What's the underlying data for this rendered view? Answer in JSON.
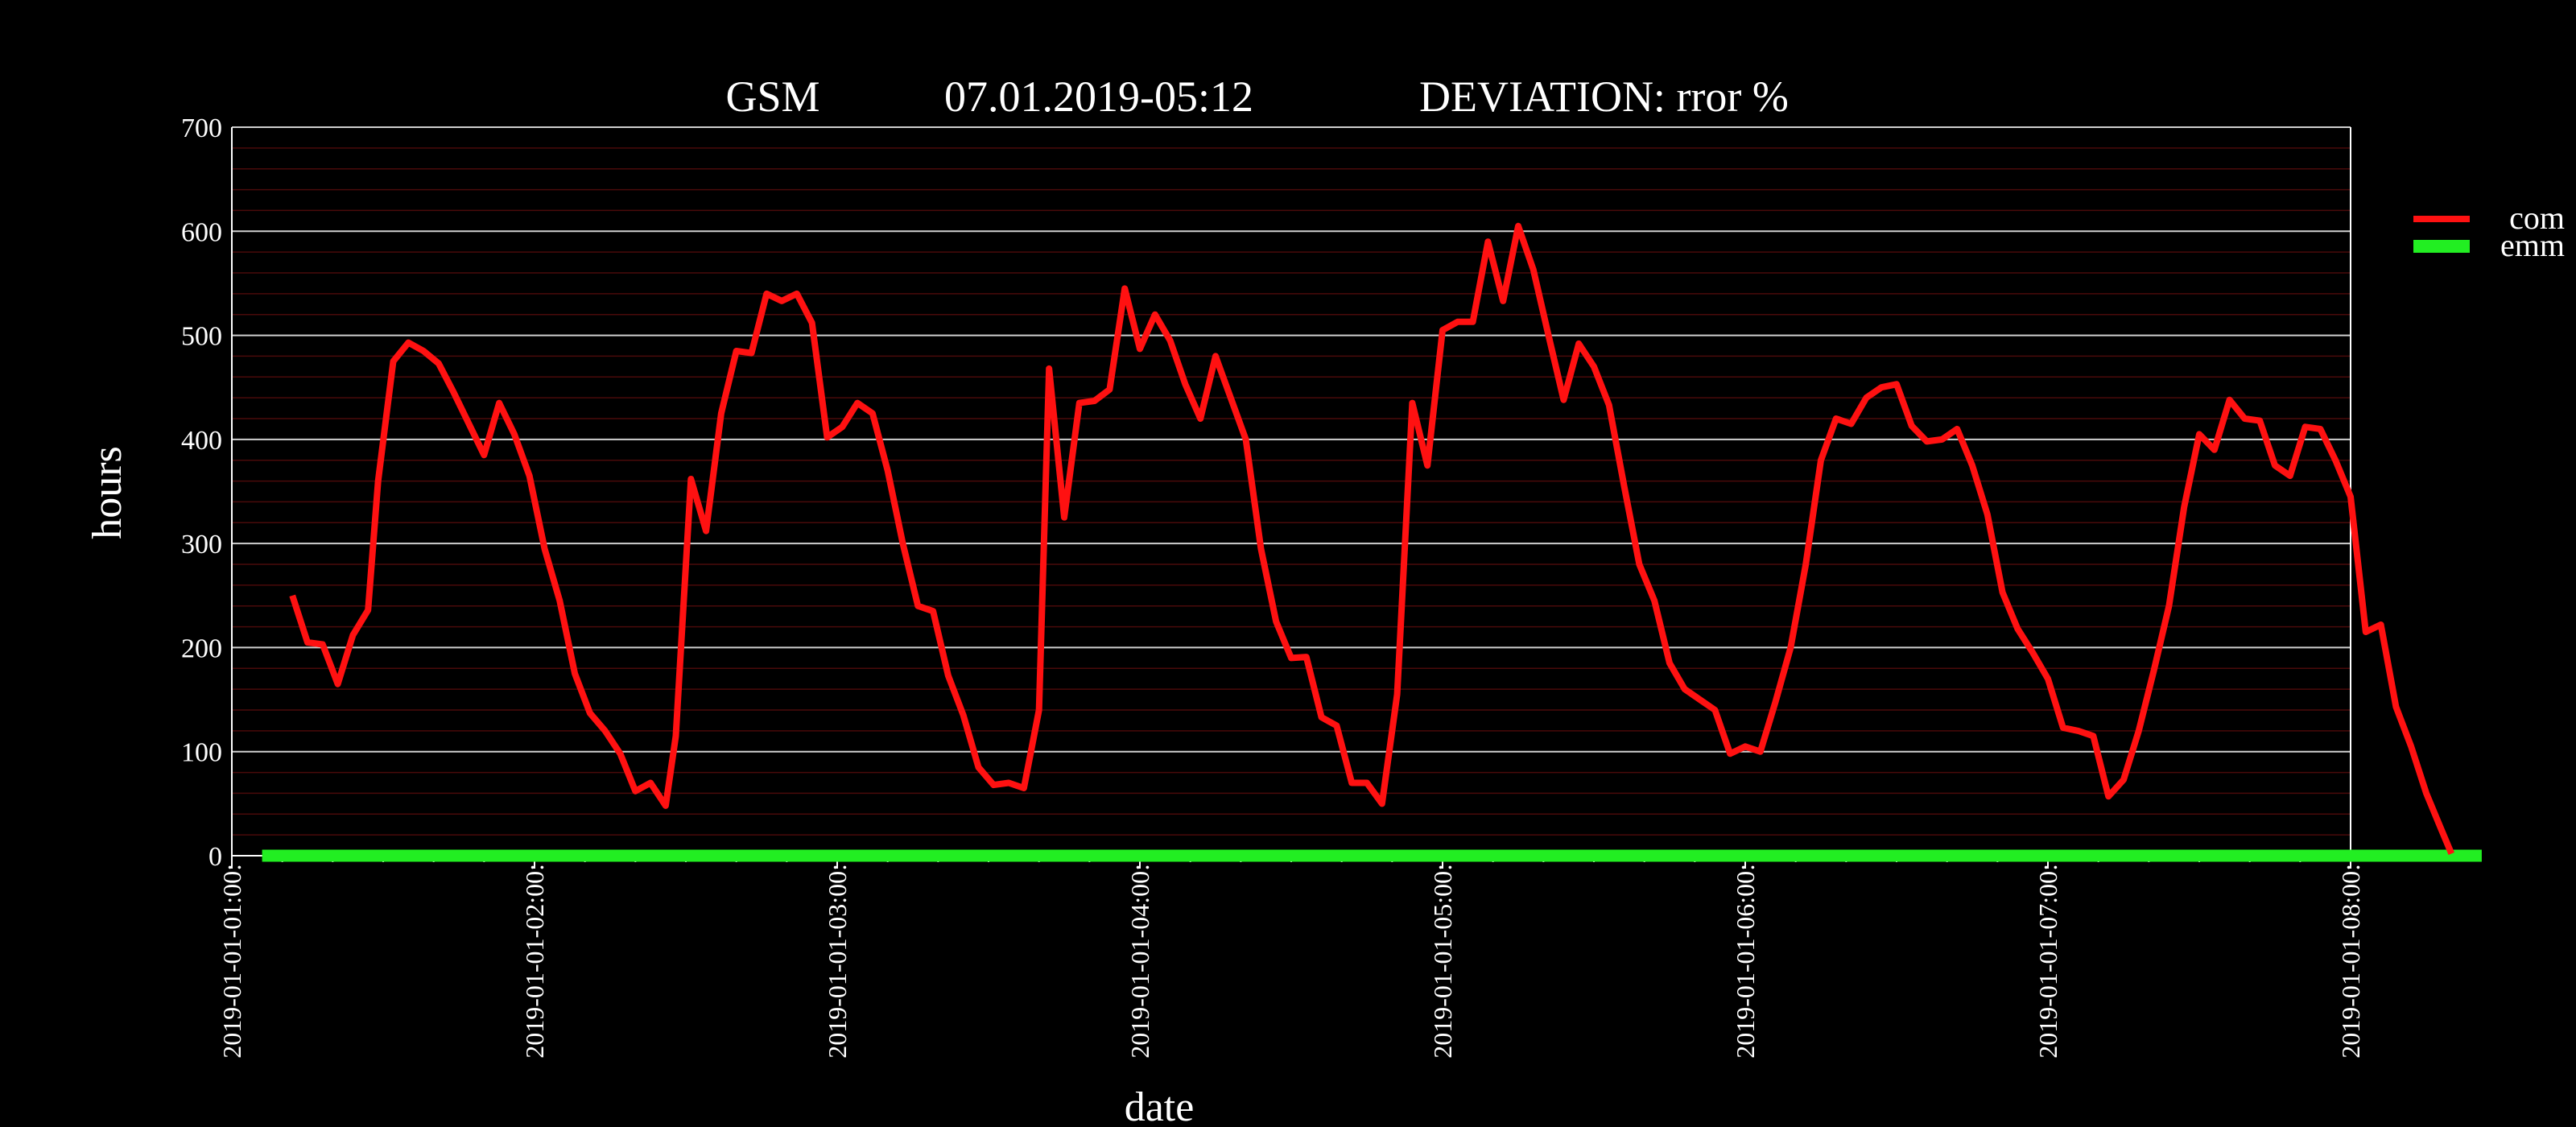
{
  "chart_data": {
    "type": "line",
    "title_parts": [
      "GSM",
      "07.01.2019-05:12",
      "DEVIATION: rror  %"
    ],
    "xlabel": "date",
    "ylabel": "hours",
    "xlim": [
      "2019-01-01 01:00",
      "2019-01-01 08:00"
    ],
    "ylim": [
      0,
      700
    ],
    "x_ticks": [
      "2019-01-01-01:00:",
      "2019-01-01-02:00:",
      "2019-01-01-03:00:",
      "2019-01-01-04:00:",
      "2019-01-01-05:00:",
      "2019-01-01-06:00:",
      "2019-01-01-07:00:",
      "2019-01-01-08:00:"
    ],
    "y_ticks": [
      0,
      100,
      200,
      300,
      400,
      500,
      600,
      700
    ],
    "grid": true,
    "legend_position": "right",
    "series": [
      {
        "name": "com",
        "color": "#ff1111",
        "points": [
          [
            "01:12",
            250
          ],
          [
            "01:15",
            205
          ],
          [
            "01:18",
            203
          ],
          [
            "01:21",
            165
          ],
          [
            "01:24",
            212
          ],
          [
            "01:27",
            236
          ],
          [
            "01:29",
            360
          ],
          [
            "01:32",
            475
          ],
          [
            "01:35",
            493
          ],
          [
            "01:38",
            485
          ],
          [
            "01:41",
            473
          ],
          [
            "01:44",
            445
          ],
          [
            "01:47",
            415
          ],
          [
            "01:50",
            385
          ],
          [
            "01:53",
            435
          ],
          [
            "01:56",
            405
          ],
          [
            "01:59",
            365
          ],
          [
            "02:02",
            295
          ],
          [
            "02:05",
            245
          ],
          [
            "02:08",
            175
          ],
          [
            "02:11",
            137
          ],
          [
            "02:14",
            120
          ],
          [
            "02:17",
            98
          ],
          [
            "02:20",
            62
          ],
          [
            "02:23",
            70
          ],
          [
            "02:26",
            48
          ],
          [
            "02:28",
            115
          ],
          [
            "02:31",
            362
          ],
          [
            "02:34",
            312
          ],
          [
            "02:37",
            425
          ],
          [
            "02:40",
            485
          ],
          [
            "02:43",
            483
          ],
          [
            "02:46",
            540
          ],
          [
            "02:49",
            533
          ],
          [
            "02:52",
            540
          ],
          [
            "02:55",
            512
          ],
          [
            "02:58",
            402
          ],
          [
            "03:01",
            412
          ],
          [
            "03:04",
            435
          ],
          [
            "03:07",
            425
          ],
          [
            "03:10",
            370
          ],
          [
            "03:13",
            300
          ],
          [
            "03:16",
            240
          ],
          [
            "03:19",
            235
          ],
          [
            "03:22",
            173
          ],
          [
            "03:25",
            135
          ],
          [
            "03:28",
            85
          ],
          [
            "03:31",
            68
          ],
          [
            "03:34",
            70
          ],
          [
            "03:37",
            65
          ],
          [
            "03:40",
            140
          ],
          [
            "03:42",
            468
          ],
          [
            "03:45",
            325
          ],
          [
            "03:48",
            435
          ],
          [
            "03:51",
            437
          ],
          [
            "03:54",
            448
          ],
          [
            "03:57",
            545
          ],
          [
            "04:00",
            487
          ],
          [
            "04:03",
            520
          ],
          [
            "04:06",
            495
          ],
          [
            "04:09",
            453
          ],
          [
            "04:12",
            420
          ],
          [
            "04:15",
            480
          ],
          [
            "04:18",
            440
          ],
          [
            "04:21",
            400
          ],
          [
            "04:24",
            295
          ],
          [
            "04:27",
            225
          ],
          [
            "04:30",
            190
          ],
          [
            "04:33",
            191
          ],
          [
            "04:36",
            133
          ],
          [
            "04:39",
            125
          ],
          [
            "04:42",
            70
          ],
          [
            "04:45",
            70
          ],
          [
            "04:48",
            50
          ],
          [
            "04:51",
            155
          ],
          [
            "04:54",
            435
          ],
          [
            "04:57",
            375
          ],
          [
            "05:00",
            505
          ],
          [
            "05:03",
            513
          ],
          [
            "05:06",
            513
          ],
          [
            "05:09",
            590
          ],
          [
            "05:12",
            533
          ],
          [
            "05:15",
            605
          ],
          [
            "05:18",
            563
          ],
          [
            "05:21",
            500
          ],
          [
            "05:24",
            438
          ],
          [
            "05:27",
            492
          ],
          [
            "05:30",
            470
          ],
          [
            "05:33",
            433
          ],
          [
            "05:36",
            355
          ],
          [
            "05:39",
            280
          ],
          [
            "05:42",
            245
          ],
          [
            "05:45",
            185
          ],
          [
            "05:48",
            160
          ],
          [
            "05:51",
            150
          ],
          [
            "05:54",
            140
          ],
          [
            "05:57",
            98
          ],
          [
            "06:00",
            105
          ],
          [
            "06:03",
            100
          ],
          [
            "06:06",
            148
          ],
          [
            "06:09",
            200
          ],
          [
            "06:12",
            280
          ],
          [
            "06:15",
            380
          ],
          [
            "06:18",
            420
          ],
          [
            "06:21",
            415
          ],
          [
            "06:24",
            440
          ],
          [
            "06:27",
            450
          ],
          [
            "06:30",
            453
          ],
          [
            "06:33",
            413
          ],
          [
            "06:36",
            398
          ],
          [
            "06:39",
            400
          ],
          [
            "06:42",
            410
          ],
          [
            "06:45",
            375
          ],
          [
            "06:48",
            328
          ],
          [
            "06:51",
            253
          ],
          [
            "06:54",
            218
          ],
          [
            "06:57",
            195
          ],
          [
            "07:00",
            170
          ],
          [
            "07:03",
            123
          ],
          [
            "07:06",
            120
          ],
          [
            "07:09",
            115
          ],
          [
            "07:12",
            57
          ],
          [
            "07:15",
            73
          ],
          [
            "07:18",
            120
          ],
          [
            "07:21",
            178
          ],
          [
            "07:24",
            240
          ],
          [
            "07:27",
            335
          ],
          [
            "07:30",
            405
          ],
          [
            "07:33",
            390
          ],
          [
            "07:36",
            438
          ],
          [
            "07:39",
            420
          ],
          [
            "07:42",
            418
          ],
          [
            "07:45",
            375
          ],
          [
            "07:48",
            365
          ],
          [
            "07:51",
            412
          ],
          [
            "07:54",
            410
          ],
          [
            "07:57",
            380
          ],
          [
            "08:00",
            345
          ],
          [
            "08:03",
            215
          ],
          [
            "08:06",
            222
          ],
          [
            "08:09",
            143
          ],
          [
            "08:12",
            105
          ],
          [
            "08:15",
            60
          ],
          [
            "08:18",
            25
          ],
          [
            "08:20",
            2
          ]
        ]
      },
      {
        "name": "emm",
        "color": "#22ee22",
        "points": [
          [
            "01:06",
            0
          ],
          [
            "08:26",
            0
          ]
        ]
      }
    ]
  }
}
